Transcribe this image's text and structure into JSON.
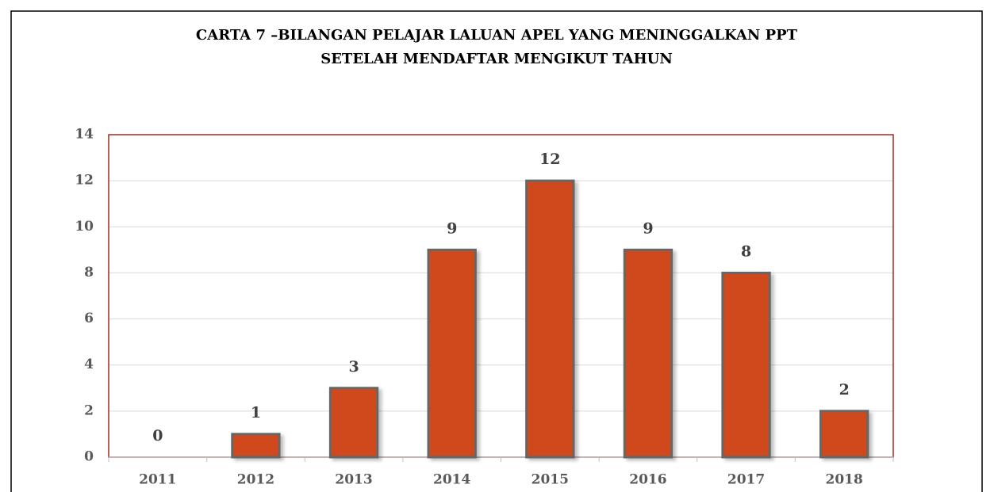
{
  "chart_data": {
    "type": "bar",
    "title": [
      "CARTA 7 –BILANGAN PELAJAR LALUAN APEL YANG MENINGGALKAN PPT",
      "SETELAH MENDAFTAR MENGIKUT TAHUN"
    ],
    "categories": [
      "2011",
      "2012",
      "2013",
      "2014",
      "2015",
      "2016",
      "2017",
      "2018"
    ],
    "values": [
      0,
      1,
      3,
      9,
      12,
      9,
      8,
      2
    ],
    "color": "#d04a1a",
    "ylim": [
      0,
      14
    ],
    "yticks": [
      0,
      2,
      4,
      6,
      8,
      10,
      12,
      14
    ],
    "grid": true
  }
}
